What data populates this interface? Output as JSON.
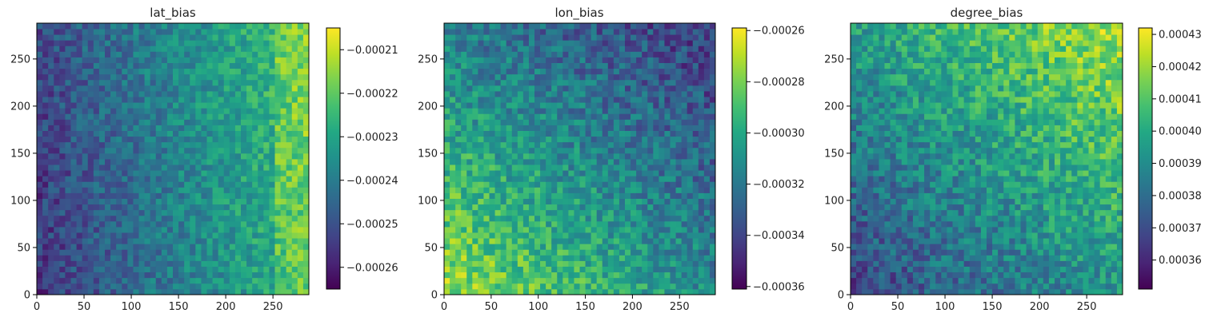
{
  "chart_data": [
    {
      "type": "heatmap",
      "title": "lat_bias",
      "xlabel": "",
      "ylabel": "",
      "xlim": [
        0,
        288
      ],
      "ylim": [
        0,
        288
      ],
      "xticks": [
        "0",
        "50",
        "100",
        "150",
        "200",
        "250"
      ],
      "xtick_values": [
        0,
        50,
        100,
        150,
        200,
        250
      ],
      "yticks": [
        "0",
        "50",
        "100",
        "150",
        "200",
        "250"
      ],
      "ytick_values": [
        0,
        50,
        100,
        150,
        200,
        250
      ],
      "colormap": "viridis",
      "colorbar": {
        "vmin": -0.000265,
        "vmax": -0.000205,
        "ticks": [
          "-0.00021",
          "-0.00022",
          "-0.00023",
          "-0.00024",
          "-0.00025",
          "-0.00026"
        ],
        "tick_values": [
          -0.00021,
          -0.00022,
          -0.00023,
          -0.00024,
          -0.00025,
          -0.00026
        ]
      },
      "trend": "low values on the left, rising toward the right edge"
    },
    {
      "type": "heatmap",
      "title": "lon_bias",
      "xlabel": "",
      "ylabel": "",
      "xlim": [
        0,
        288
      ],
      "ylim": [
        0,
        288
      ],
      "xticks": [
        "0",
        "50",
        "100",
        "150",
        "200",
        "250"
      ],
      "xtick_values": [
        0,
        50,
        100,
        150,
        200,
        250
      ],
      "yticks": [
        "0",
        "50",
        "100",
        "150",
        "200",
        "250"
      ],
      "ytick_values": [
        0,
        50,
        100,
        150,
        200,
        250
      ],
      "colormap": "viridis",
      "colorbar": {
        "vmin": -0.000361,
        "vmax": -0.000259,
        "ticks": [
          "-0.00026",
          "-0.00028",
          "-0.00030",
          "-0.00032",
          "-0.00034",
          "-0.00036"
        ],
        "tick_values": [
          -0.00026,
          -0.00028,
          -0.0003,
          -0.00032,
          -0.00034,
          -0.00036
        ]
      },
      "trend": "high values in the bottom-left corner, low in the top-right"
    },
    {
      "type": "heatmap",
      "title": "degree_bias",
      "xlabel": "",
      "ylabel": "",
      "xlim": [
        0,
        288
      ],
      "ylim": [
        0,
        288
      ],
      "xticks": [
        "0",
        "50",
        "100",
        "150",
        "200",
        "250"
      ],
      "xtick_values": [
        0,
        50,
        100,
        150,
        200,
        250
      ],
      "yticks": [
        "0",
        "50",
        "100",
        "150",
        "200",
        "250"
      ],
      "ytick_values": [
        0,
        50,
        100,
        150,
        200,
        250
      ],
      "colormap": "viridis",
      "colorbar": {
        "vmin": 0.000351,
        "vmax": 0.000432,
        "ticks": [
          "0.00043",
          "0.00042",
          "0.00041",
          "0.00040",
          "0.00039",
          "0.00038",
          "0.00037",
          "0.00036"
        ],
        "tick_values": [
          0.00043,
          0.00042,
          0.00041,
          0.0004,
          0.00039,
          0.00038,
          0.00037,
          0.00036
        ]
      },
      "trend": "low values in the bottom-left, rising toward the top-right"
    }
  ]
}
